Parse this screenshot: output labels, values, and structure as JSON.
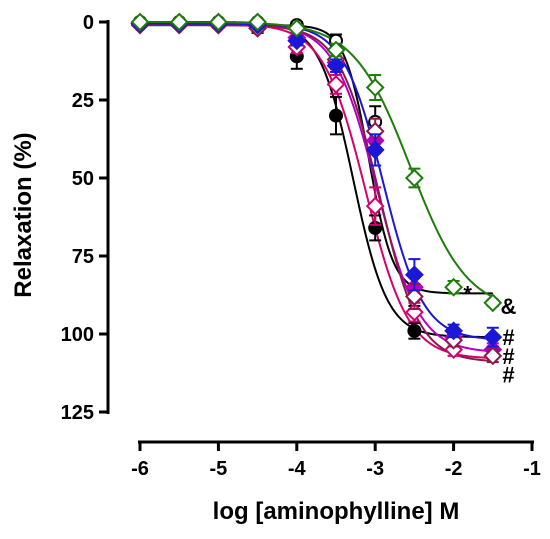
{
  "chart_data": {
    "type": "line",
    "xlabel": "log [aminophylline] M",
    "ylabel": "Relaxation (%)",
    "xlim": [
      -6,
      -1
    ],
    "ylim": [
      0,
      125
    ],
    "y_inverted": true,
    "x_ticks": [
      -6,
      -5,
      -4,
      -3,
      -2,
      -1
    ],
    "x_tick_labels": [
      "-6",
      "-5",
      "-4",
      "-3",
      "-2",
      "-1"
    ],
    "y_ticks": [
      0,
      25,
      50,
      75,
      100,
      125
    ],
    "y_tick_labels": [
      "0",
      "25",
      "50",
      "75",
      "100",
      "125"
    ],
    "grid": false,
    "legend": "none",
    "x": [
      -6,
      -5.5,
      -5,
      -4.5,
      -4,
      -3.5,
      -3,
      -2.5,
      -2,
      -1.5
    ],
    "series": [
      {
        "color": "#000000",
        "marker": "filled-circle",
        "values": [
          0,
          0,
          0.5,
          2,
          11,
          30,
          66,
          99,
          null,
          null
        ],
        "errors": [
          0.5,
          0.5,
          0.8,
          1.5,
          4,
          6,
          4,
          2.5,
          null,
          null
        ],
        "fit": {
          "bottom": 0,
          "top": 101,
          "logEC50": -3.28,
          "hill": 2.0
        }
      },
      {
        "color": "#000000",
        "marker": "open-circle",
        "values": [
          0,
          0,
          0,
          0,
          1,
          6,
          32,
          88,
          null,
          null
        ],
        "errors": [
          0.5,
          0.5,
          0.5,
          0.5,
          1,
          2,
          5,
          3,
          null,
          null
        ],
        "fit": {
          "bottom": 1,
          "top": 87,
          "logEC50": -3.08,
          "hill": 2.8
        }
      },
      {
        "color": "#d6006e",
        "marker": "open-diamond",
        "values": [
          0.5,
          0.5,
          1,
          2,
          8,
          20,
          59,
          93,
          105,
          null
        ],
        "errors": [
          0.5,
          0.5,
          0.8,
          1,
          2,
          3,
          6,
          3,
          2,
          null
        ],
        "fit": {
          "bottom": 0.5,
          "top": 108,
          "logEC50": -3.12,
          "hill": 1.6
        }
      },
      {
        "color": "#b300c7",
        "marker": "filled-diamond",
        "values": [
          0.5,
          0.5,
          0.5,
          1.5,
          5,
          13,
          38,
          85,
          101,
          105
        ],
        "errors": [
          0.5,
          0.5,
          0.5,
          1,
          1.5,
          2,
          4,
          4,
          2,
          2
        ],
        "fit": {
          "bottom": 0.5,
          "top": 106,
          "logEC50": -2.98,
          "hill": 1.6
        }
      },
      {
        "color": "#8b1a4a",
        "marker": "open-diamond",
        "values": [
          1,
          1,
          1,
          2,
          6,
          12,
          35,
          88,
          102,
          107
        ],
        "errors": [
          0.5,
          0.5,
          0.5,
          1,
          1.5,
          2,
          4,
          4,
          2,
          2
        ],
        "fit": {
          "bottom": 1,
          "top": 109,
          "logEC50": -2.95,
          "hill": 1.7
        }
      },
      {
        "color": "#1a17d6",
        "marker": "filled-diamond",
        "values": [
          0.5,
          0.5,
          0.5,
          1,
          6,
          14,
          41,
          81,
          99,
          101
        ],
        "errors": [
          0.5,
          0.5,
          0.5,
          1,
          1.5,
          2,
          5,
          5,
          2,
          3
        ],
        "fit": {
          "bottom": 0.5,
          "top": 102,
          "logEC50": -2.9,
          "hill": 1.7
        }
      },
      {
        "color": "#1e7d0a",
        "marker": "open-diamond",
        "values": [
          0,
          0,
          0,
          0,
          2,
          9,
          21,
          50,
          85,
          90
        ],
        "errors": [
          0.5,
          0.5,
          0.5,
          0.5,
          1,
          2,
          4,
          3,
          2,
          1
        ],
        "fit": {
          "bottom": 0,
          "top": 93,
          "logEC50": -2.55,
          "hill": 1.2
        }
      }
    ],
    "annotations": [
      {
        "text": "*",
        "x": -1.82,
        "y": 87
      },
      {
        "text": "&",
        "x": -1.3,
        "y": 91
      },
      {
        "text": "#",
        "x": -1.3,
        "y": 101
      },
      {
        "text": "#",
        "x": -1.3,
        "y": 107
      },
      {
        "text": "#",
        "x": -1.3,
        "y": 113
      }
    ]
  }
}
